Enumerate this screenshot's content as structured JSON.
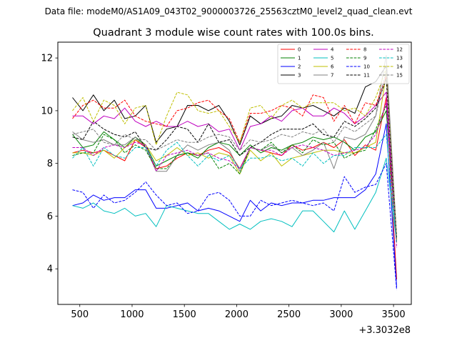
{
  "chart_data": {
    "type": "line",
    "suptitle": "Data file: modeM0/AS1A09_043T02_9000003726_25563cztM0_level2_quad_clean.evt",
    "title": "Quadrant 3 module wise count rates with 100.0s bins.",
    "xlabel": "",
    "ylabel": "",
    "x_offset_label": "+3.3032e8",
    "xlim": [
      290,
      3670
    ],
    "ylim": [
      2.65,
      12.6
    ],
    "x_ticks": [
      500,
      1000,
      1500,
      2000,
      2500,
      3000,
      3500
    ],
    "y_ticks": [
      4,
      6,
      8,
      10,
      12
    ],
    "x": [
      430,
      530,
      630,
      730,
      830,
      930,
      1030,
      1130,
      1230,
      1330,
      1430,
      1530,
      1630,
      1730,
      1830,
      1930,
      2030,
      2130,
      2230,
      2330,
      2430,
      2530,
      2630,
      2730,
      2830,
      2930,
      3030,
      3130,
      3230,
      3330,
      3430,
      3530
    ],
    "series": [
      {
        "name": "0",
        "color": "#ff0000",
        "dash": "solid",
        "values": [
          8.4,
          8.5,
          8.4,
          8.5,
          8.3,
          8.1,
          8.9,
          8.6,
          7.8,
          7.9,
          8.2,
          8.4,
          8.3,
          8.5,
          8.6,
          8.4,
          7.8,
          8.6,
          8.5,
          8.4,
          8.3,
          8.7,
          8.5,
          8.6,
          8.8,
          8.6,
          8.9,
          8.3,
          8.7,
          8.5,
          10.5,
          3.6
        ]
      },
      {
        "name": "1",
        "color": "#008000",
        "dash": "solid",
        "values": [
          9.1,
          8.6,
          8.7,
          9.2,
          8.9,
          8.6,
          9.0,
          8.7,
          7.9,
          8.1,
          8.3,
          8.4,
          8.2,
          8.6,
          8.8,
          8.7,
          8.3,
          8.7,
          8.4,
          8.6,
          8.5,
          8.7,
          8.8,
          9.0,
          8.9,
          9.0,
          8.8,
          8.5,
          9.0,
          9.2,
          10.0,
          5.0
        ]
      },
      {
        "name": "2",
        "color": "#0000ff",
        "dash": "solid",
        "values": [
          6.4,
          6.5,
          6.8,
          6.6,
          6.7,
          6.7,
          7.0,
          7.0,
          6.3,
          6.3,
          6.4,
          6.5,
          6.2,
          6.3,
          6.2,
          6.0,
          5.8,
          6.6,
          6.2,
          6.5,
          6.4,
          6.5,
          6.5,
          6.6,
          6.6,
          6.7,
          6.7,
          6.7,
          7.0,
          7.6,
          9.5,
          3.3
        ]
      },
      {
        "name": "3",
        "color": "#000000",
        "dash": "solid",
        "values": [
          10.5,
          10.0,
          10.6,
          10.0,
          10.4,
          9.7,
          9.8,
          10.2,
          8.8,
          9.3,
          9.4,
          10.2,
          10.2,
          10.0,
          10.2,
          9.6,
          8.7,
          9.8,
          9.5,
          9.7,
          9.8,
          10.2,
          10.1,
          10.2,
          10.0,
          9.8,
          10.1,
          9.9,
          10.9,
          11.1,
          11.7,
          5.0
        ]
      },
      {
        "name": "4",
        "color": "#bf00bf",
        "dash": "solid",
        "values": [
          9.8,
          9.8,
          9.5,
          9.8,
          9.7,
          10.1,
          9.6,
          9.4,
          9.6,
          9.4,
          9.4,
          9.6,
          9.4,
          9.5,
          9.2,
          9.3,
          8.5,
          9.4,
          9.5,
          9.8,
          9.6,
          10.0,
          10.1,
          9.8,
          9.8,
          10.1,
          9.9,
          9.5,
          9.8,
          10.2,
          10.7,
          5.0
        ]
      },
      {
        "name": "5",
        "color": "#00bfbf",
        "dash": "solid",
        "values": [
          6.4,
          6.3,
          6.5,
          6.2,
          6.1,
          6.3,
          6.0,
          6.1,
          5.6,
          6.4,
          6.3,
          6.2,
          6.1,
          6.1,
          5.8,
          5.5,
          5.7,
          5.5,
          5.8,
          5.9,
          5.8,
          5.6,
          6.2,
          6.2,
          5.8,
          5.4,
          6.2,
          5.5,
          6.2,
          6.9,
          8.2,
          5.0
        ]
      },
      {
        "name": "6",
        "color": "#bfbf00",
        "dash": "solid",
        "values": [
          8.4,
          8.4,
          8.3,
          8.5,
          8.2,
          8.6,
          8.9,
          8.7,
          8.1,
          8.3,
          8.6,
          8.3,
          8.4,
          8.2,
          8.4,
          8.3,
          7.6,
          8.5,
          8.1,
          8.4,
          7.9,
          8.2,
          8.3,
          8.4,
          8.5,
          8.5,
          8.4,
          8.4,
          8.6,
          8.8,
          11.4,
          5.1
        ]
      },
      {
        "name": "7",
        "color": "#808080",
        "dash": "solid",
        "values": [
          9.2,
          8.9,
          8.8,
          8.9,
          8.7,
          8.7,
          9.0,
          8.6,
          7.7,
          7.7,
          8.3,
          8.7,
          8.5,
          8.7,
          8.8,
          8.5,
          7.7,
          8.6,
          8.5,
          8.7,
          8.4,
          8.6,
          8.3,
          8.5,
          8.8,
          7.8,
          9.0,
          8.9,
          9.1,
          9.8,
          12.1,
          5.2
        ]
      },
      {
        "name": "8",
        "color": "#ff0000",
        "dash": "dashed",
        "values": [
          9.7,
          10.2,
          10.4,
          10.1,
          10.1,
          10.4,
          9.8,
          9.6,
          9.5,
          9.4,
          10.0,
          10.1,
          10.3,
          10.4,
          10.0,
          9.7,
          8.8,
          9.9,
          9.9,
          10.0,
          10.2,
          10.1,
          9.8,
          10.6,
          10.5,
          9.6,
          10.2,
          9.5,
          10.3,
          10.2,
          11.3,
          5.1
        ]
      },
      {
        "name": "9",
        "color": "#008000",
        "dash": "dashed",
        "values": [
          8.3,
          8.4,
          8.4,
          9.1,
          8.9,
          8.4,
          8.7,
          8.5,
          7.8,
          7.8,
          8.3,
          8.4,
          8.3,
          8.4,
          7.8,
          8.0,
          7.6,
          8.6,
          8.5,
          8.8,
          8.4,
          8.7,
          8.4,
          8.9,
          8.7,
          8.8,
          8.2,
          8.4,
          8.5,
          9.3,
          10.2,
          5.0
        ]
      },
      {
        "name": "10",
        "color": "#0000ff",
        "dash": "dashed",
        "values": [
          7.0,
          6.9,
          6.3,
          6.8,
          6.5,
          6.6,
          6.9,
          7.3,
          6.8,
          6.4,
          6.5,
          6.1,
          6.2,
          6.8,
          6.9,
          6.6,
          6.0,
          6.0,
          6.6,
          6.4,
          6.5,
          6.6,
          6.5,
          6.4,
          6.5,
          6.2,
          7.5,
          6.9,
          7.1,
          7.2,
          8.0,
          3.2
        ]
      },
      {
        "name": "11",
        "color": "#000000",
        "dash": "dashed",
        "values": [
          9.0,
          8.9,
          9.6,
          9.3,
          9.1,
          9.0,
          9.2,
          8.6,
          8.5,
          8.9,
          9.4,
          9.3,
          8.8,
          9.5,
          8.8,
          8.9,
          8.3,
          8.6,
          8.8,
          9.1,
          9.3,
          9.3,
          9.3,
          9.5,
          9.1,
          9.0,
          9.6,
          9.4,
          9.7,
          10.1,
          11.2,
          5.2
        ]
      },
      {
        "name": "12",
        "color": "#bf00bf",
        "dash": "dashed",
        "values": [
          8.6,
          8.6,
          8.3,
          8.6,
          8.7,
          8.6,
          8.8,
          8.7,
          7.7,
          8.3,
          8.4,
          8.5,
          8.3,
          8.4,
          8.2,
          8.1,
          7.8,
          8.6,
          8.5,
          8.5,
          8.3,
          8.6,
          8.7,
          8.6,
          8.5,
          8.3,
          8.4,
          8.5,
          8.6,
          9.1,
          10.3,
          4.8
        ]
      },
      {
        "name": "13",
        "color": "#00bfbf",
        "dash": "dashed",
        "values": [
          8.2,
          8.6,
          7.9,
          8.6,
          8.3,
          8.2,
          8.6,
          8.6,
          7.9,
          8.5,
          8.8,
          8.3,
          7.9,
          8.3,
          8.1,
          8.3,
          7.8,
          8.2,
          8.2,
          8.3,
          8.1,
          8.2,
          7.9,
          8.4,
          8.0,
          8.3,
          8.3,
          8.6,
          8.6,
          8.6,
          9.1,
          5.0
        ]
      },
      {
        "name": "14",
        "color": "#bfbf00",
        "dash": "dashed",
        "values": [
          10.0,
          10.5,
          9.6,
          10.4,
          10.2,
          9.5,
          10.1,
          10.2,
          8.7,
          9.8,
          10.7,
          10.6,
          10.0,
          9.9,
          10.0,
          9.4,
          8.8,
          10.1,
          10.2,
          9.7,
          10.2,
          10.4,
          10.1,
          10.3,
          10.3,
          10.3,
          10.0,
          10.1,
          9.8,
          10.5,
          11.6,
          5.1
        ]
      },
      {
        "name": "15",
        "color": "#808080",
        "dash": "dashed",
        "values": [
          9.1,
          9.2,
          9.3,
          8.8,
          8.7,
          9.1,
          8.9,
          8.9,
          8.5,
          8.7,
          8.9,
          8.8,
          8.8,
          9.0,
          9.1,
          9.0,
          8.5,
          8.9,
          8.8,
          8.9,
          9.1,
          9.0,
          9.2,
          9.1,
          9.3,
          8.8,
          9.4,
          9.2,
          9.5,
          9.8,
          11.5,
          5.0
        ]
      }
    ]
  }
}
